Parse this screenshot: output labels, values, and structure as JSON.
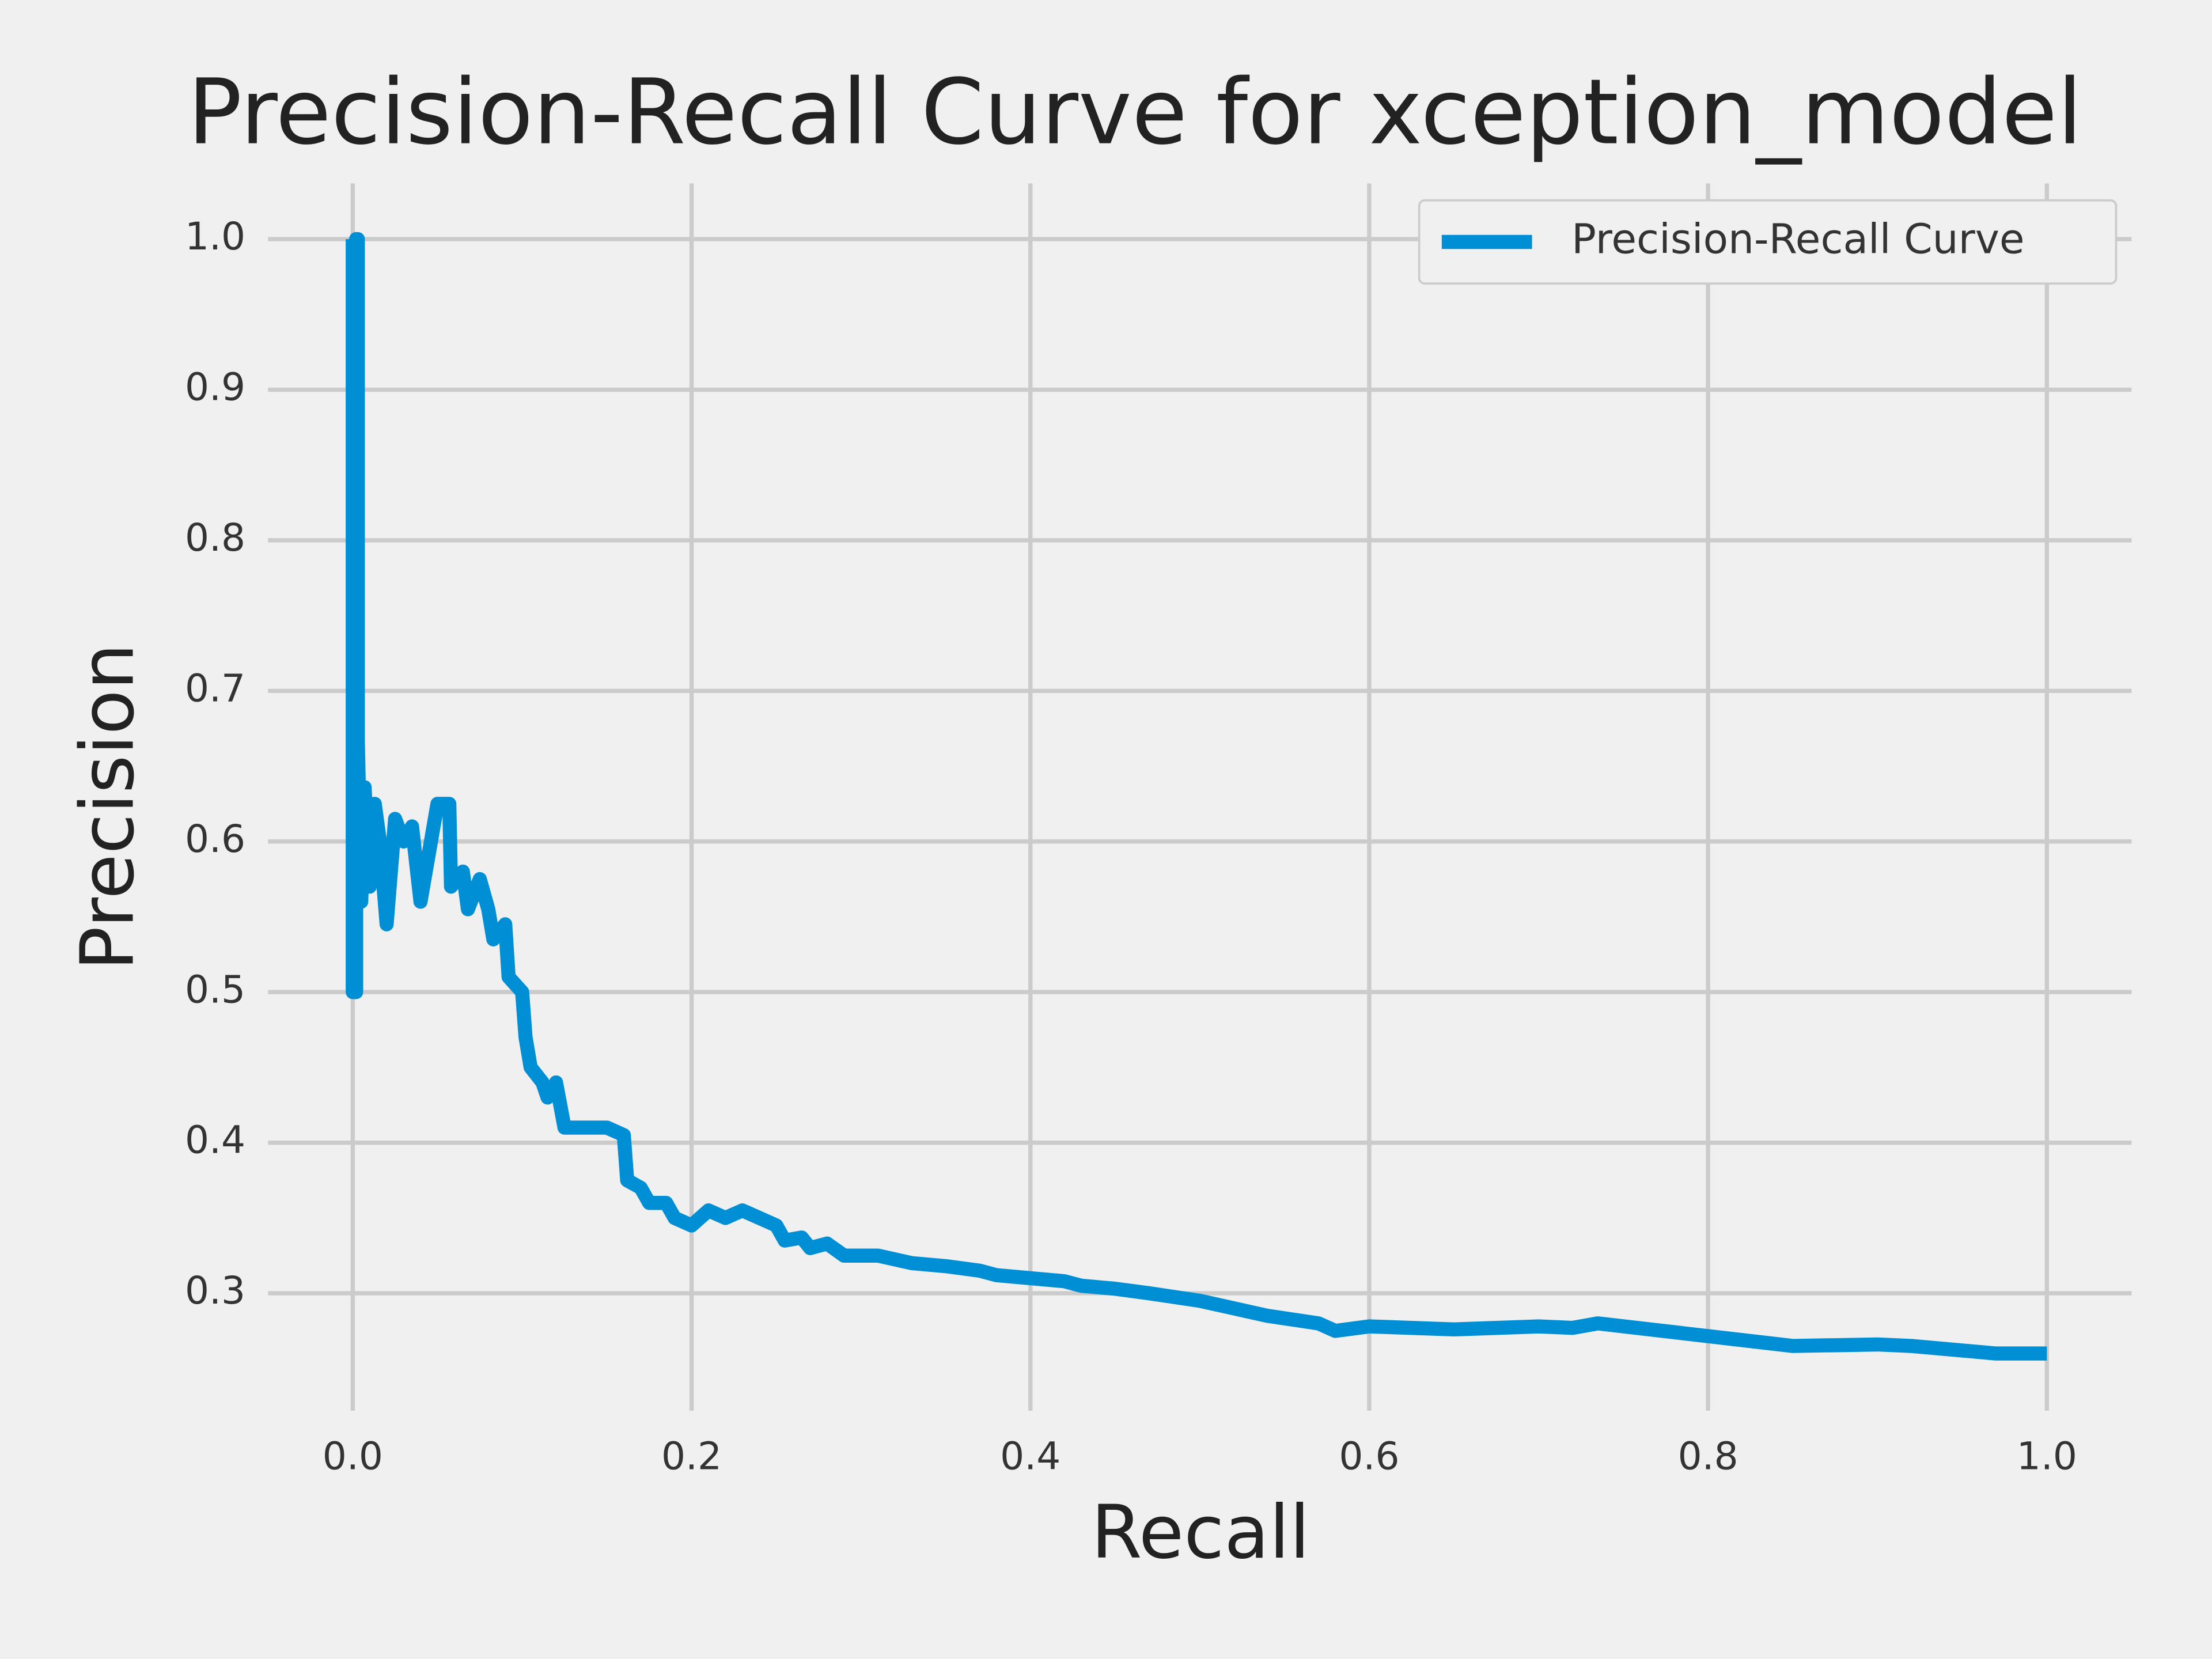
{
  "chart_data": {
    "type": "line",
    "title": "Precision-Recall Curve for xception_model",
    "xlabel": "Recall",
    "ylabel": "Precision",
    "x": [
      0.0,
      0.0,
      0.002,
      0.002,
      0.003,
      0.003,
      0.005,
      0.007,
      0.01,
      0.013,
      0.016,
      0.02,
      0.025,
      0.03,
      0.035,
      0.04,
      0.05,
      0.057,
      0.058,
      0.065,
      0.068,
      0.075,
      0.08,
      0.083,
      0.09,
      0.092,
      0.1,
      0.102,
      0.105,
      0.112,
      0.115,
      0.12,
      0.125,
      0.135,
      0.15,
      0.16,
      0.162,
      0.17,
      0.175,
      0.185,
      0.19,
      0.2,
      0.21,
      0.22,
      0.23,
      0.24,
      0.25,
      0.255,
      0.265,
      0.27,
      0.28,
      0.29,
      0.31,
      0.33,
      0.35,
      0.37,
      0.38,
      0.4,
      0.42,
      0.43,
      0.45,
      0.47,
      0.5,
      0.52,
      0.54,
      0.57,
      0.58,
      0.6,
      0.65,
      0.7,
      0.72,
      0.735,
      0.85,
      0.9,
      0.92,
      0.95,
      0.97,
      1.0
    ],
    "series": [
      {
        "name": "Precision-Recall Curve",
        "color": "#008fd5",
        "values": [
          1.0,
          0.5,
          0.5,
          1.0,
          1.0,
          0.667,
          0.56,
          0.636,
          0.57,
          0.625,
          0.6,
          0.545,
          0.615,
          0.6,
          0.61,
          0.56,
          0.625,
          0.625,
          0.57,
          0.58,
          0.555,
          0.575,
          0.555,
          0.535,
          0.545,
          0.51,
          0.5,
          0.47,
          0.45,
          0.44,
          0.43,
          0.44,
          0.41,
          0.41,
          0.41,
          0.405,
          0.375,
          0.37,
          0.36,
          0.36,
          0.35,
          0.345,
          0.355,
          0.35,
          0.355,
          0.35,
          0.345,
          0.335,
          0.337,
          0.33,
          0.333,
          0.325,
          0.325,
          0.32,
          0.318,
          0.315,
          0.312,
          0.31,
          0.308,
          0.305,
          0.303,
          0.3,
          0.295,
          0.29,
          0.285,
          0.28,
          0.275,
          0.278,
          0.276,
          0.278,
          0.277,
          0.28,
          0.265,
          0.266,
          0.265,
          0.262,
          0.26,
          0.26
        ]
      }
    ],
    "xlim": [
      -0.05,
      1.05
    ],
    "ylim": [
      0.222,
      1.037
    ],
    "xticks": [
      {
        "value": 0,
        "label": "0.0"
      },
      0.2,
      0.4,
      0.6,
      0.8,
      {
        "value": 1,
        "label": "1.0"
      }
    ],
    "yticks": [
      0.3,
      0.4,
      0.5,
      0.6,
      0.7,
      0.8,
      0.9,
      {
        "value": 1,
        "label": "1.0"
      }
    ],
    "grid": true,
    "legend": "upper right"
  }
}
